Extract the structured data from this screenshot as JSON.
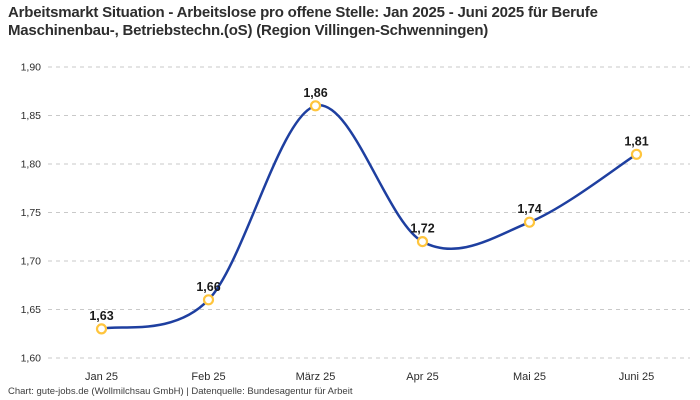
{
  "title": "Arbeitsmarkt Situation - Arbeitslose pro offene Stelle: Jan 2025 - Juni 2025 für Berufe Maschinenbau-, Betriebstechn.(oS) (Region Villingen-Schwenningen)",
  "footer": "Chart: gute-jobs.de (Wollmilchsau GmbH) | Datenquelle: Bundesagentur für Arbeit",
  "chart_data": {
    "type": "line",
    "categories": [
      "Jan 25",
      "Feb 25",
      "März 25",
      "Apr 25",
      "Mai 25",
      "Juni 25"
    ],
    "values": [
      1.63,
      1.66,
      1.86,
      1.72,
      1.74,
      1.81
    ],
    "value_labels": [
      "1,63",
      "1,66",
      "1,86",
      "1,72",
      "1,74",
      "1,81"
    ],
    "title": "Arbeitsmarkt Situation - Arbeitslose pro offene Stelle: Jan 2025 - Juni 2025 für Berufe Maschinenbau-, Betriebstechn.(oS) (Region Villingen-Schwenningen)",
    "xlabel": "",
    "ylabel": "",
    "ylim": [
      1.6,
      1.9
    ],
    "ytick_step": 0.05,
    "ytick_labels": [
      "1,60",
      "1,65",
      "1,70",
      "1,75",
      "1,80",
      "1,85",
      "1,90"
    ],
    "grid": "horizontal-dashed",
    "legend": "none",
    "colors": {
      "line": "#1e3fa0",
      "marker_ring": "#ffc53d",
      "marker_fill": "#ffffff",
      "gridline": "#c9c9c9",
      "label_text": "#1a1a1a"
    }
  }
}
